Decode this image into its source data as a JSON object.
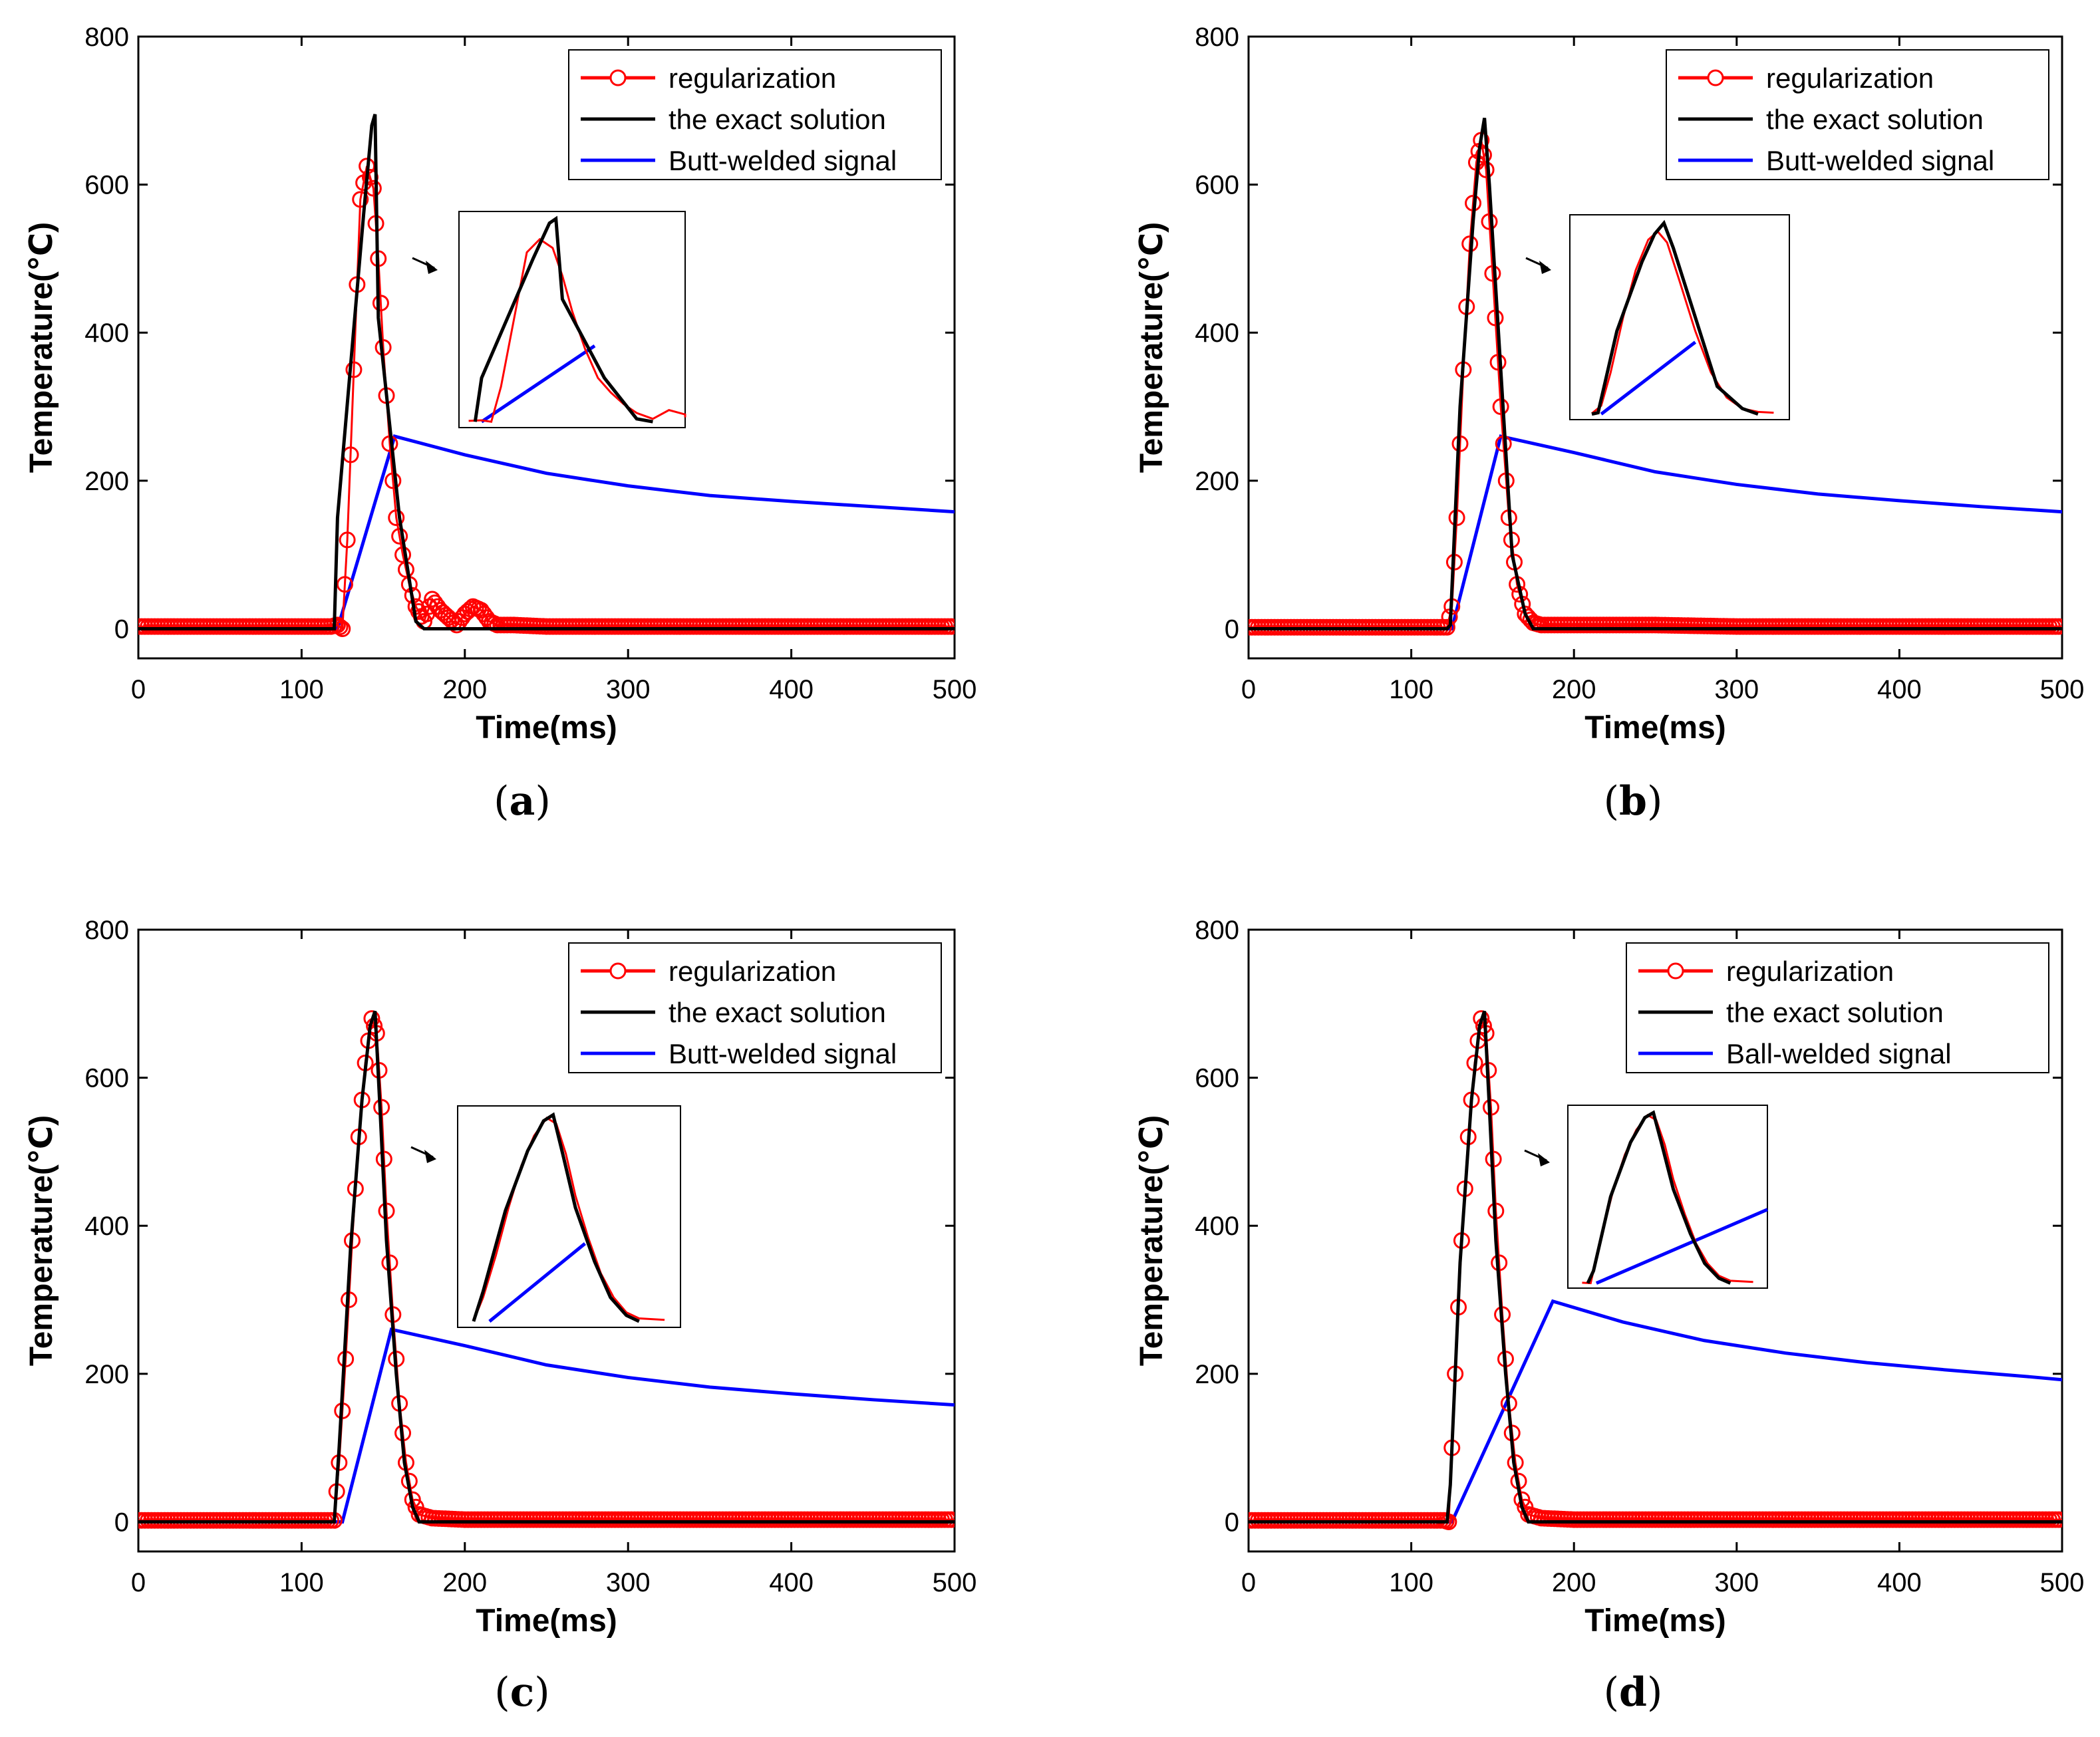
{
  "figure": {
    "captions": [
      "(a)",
      "(b)",
      "(c)",
      "(d)"
    ],
    "caption_letters": [
      "a",
      "b",
      "c",
      "d"
    ]
  },
  "colors": {
    "regularization": "#ff0000",
    "exact": "#000000",
    "signal": "#0000ff",
    "axis": "#000000",
    "background": "#ffffff"
  },
  "chart_data": [
    {
      "panel": "a",
      "type": "line",
      "xlabel": "Time(ms)",
      "ylabel": "Temperature(℃)",
      "xlim": [
        0,
        500
      ],
      "ylim": [
        -40,
        800
      ],
      "xticks": [
        0,
        100,
        200,
        300,
        400,
        500
      ],
      "yticks": [
        0,
        200,
        400,
        600,
        800
      ],
      "legend": [
        "regularization",
        "the exact solution",
        "Butt-welded signal"
      ],
      "legend_position": "top-right",
      "series": [
        {
          "name": "the exact solution",
          "x": [
            0,
            120,
            122,
            138,
            143,
            145,
            147,
            160,
            170,
            175,
            200,
            300,
            400,
            500
          ],
          "y": [
            0,
            0,
            150,
            560,
            680,
            695,
            420,
            150,
            10,
            0,
            0,
            0,
            0,
            0
          ]
        },
        {
          "name": "regularization",
          "x": [
            0,
            118,
            122,
            125,
            128,
            132,
            136,
            140,
            144,
            147,
            150,
            154,
            158,
            162,
            166,
            170,
            175,
            180,
            185,
            190,
            195,
            200,
            205,
            210,
            215,
            220,
            230,
            250,
            300,
            350,
            400,
            450,
            500
          ],
          "y": [
            3,
            3,
            5,
            0,
            120,
            350,
            580,
            625,
            595,
            500,
            380,
            250,
            150,
            100,
            60,
            30,
            10,
            40,
            25,
            15,
            5,
            20,
            30,
            25,
            10,
            5,
            5,
            3,
            3,
            3,
            3,
            3,
            3
          ]
        },
        {
          "name": "Butt-welded signal",
          "x": [
            0,
            122,
            157,
            200,
            250,
            300,
            350,
            400,
            450,
            500
          ],
          "y": [
            0,
            0,
            260,
            235,
            210,
            193,
            180,
            172,
            165,
            158
          ]
        }
      ],
      "annotation": "zoomed inset of pulse region"
    },
    {
      "panel": "b",
      "type": "line",
      "xlabel": "Time(ms)",
      "ylabel": "Temperature(℃)",
      "xlim": [
        0,
        500
      ],
      "ylim": [
        -40,
        800
      ],
      "xticks": [
        0,
        100,
        200,
        300,
        400,
        500
      ],
      "yticks": [
        0,
        200,
        400,
        600,
        800
      ],
      "legend": [
        "regularization",
        "the exact solution",
        "Butt-welded signal"
      ],
      "legend_position": "top-right",
      "series": [
        {
          "name": "the exact solution",
          "x": [
            0,
            122,
            124,
            130,
            138,
            142,
            145,
            148,
            155,
            162,
            170,
            175,
            200,
            300,
            400,
            500
          ],
          "y": [
            0,
            0,
            5,
            300,
            550,
            650,
            690,
            600,
            350,
            100,
            20,
            0,
            0,
            0,
            0,
            0
          ]
        },
        {
          "name": "regularization",
          "x": [
            0,
            122,
            125,
            128,
            132,
            136,
            140,
            143,
            146,
            150,
            155,
            160,
            165,
            170,
            175,
            180,
            200,
            250,
            300,
            350,
            400,
            450,
            500
          ],
          "y": [
            2,
            2,
            30,
            150,
            350,
            520,
            630,
            660,
            620,
            480,
            300,
            150,
            60,
            20,
            8,
            5,
            5,
            5,
            3,
            3,
            3,
            3,
            3
          ]
        },
        {
          "name": "Butt-welded signal",
          "x": [
            0,
            125,
            155,
            200,
            250,
            300,
            350,
            400,
            450,
            500
          ],
          "y": [
            0,
            0,
            260,
            238,
            212,
            195,
            182,
            173,
            165,
            158
          ]
        }
      ],
      "annotation": "zoomed inset of pulse region"
    },
    {
      "panel": "c",
      "type": "line",
      "xlabel": "Time(ms)",
      "ylabel": "Temperature(℃)",
      "xlim": [
        0,
        500
      ],
      "ylim": [
        -40,
        800
      ],
      "xticks": [
        0,
        100,
        200,
        300,
        400,
        500
      ],
      "yticks": [
        0,
        200,
        400,
        600,
        800
      ],
      "legend": [
        "regularization",
        "the exact solution",
        "Butt-welded signal"
      ],
      "legend_position": "top-right",
      "series": [
        {
          "name": "the exact solution",
          "x": [
            0,
            120,
            123,
            130,
            137,
            142,
            145,
            148,
            152,
            158,
            163,
            168,
            172,
            200,
            300,
            400,
            500
          ],
          "y": [
            0,
            0,
            100,
            370,
            570,
            670,
            690,
            560,
            380,
            200,
            80,
            20,
            0,
            0,
            0,
            0,
            0
          ]
        },
        {
          "name": "regularization",
          "x": [
            0,
            120,
            123,
            127,
            131,
            135,
            139,
            143,
            146,
            149,
            152,
            156,
            160,
            164,
            168,
            172,
            180,
            200,
            250,
            300,
            350,
            400,
            450,
            500
          ],
          "y": [
            2,
            2,
            80,
            220,
            380,
            520,
            620,
            680,
            660,
            560,
            420,
            280,
            160,
            80,
            30,
            10,
            5,
            3,
            3,
            3,
            3,
            3,
            3,
            3
          ]
        },
        {
          "name": "Butt-welded signal",
          "x": [
            0,
            125,
            155,
            200,
            250,
            300,
            350,
            400,
            450,
            500
          ],
          "y": [
            0,
            0,
            260,
            238,
            212,
            195,
            182,
            173,
            165,
            158
          ]
        }
      ],
      "annotation": "zoomed inset of pulse region"
    },
    {
      "panel": "d",
      "type": "line",
      "xlabel": "Time(ms)",
      "ylabel": "Temperature(℃)",
      "xlim": [
        0,
        500
      ],
      "ylim": [
        -40,
        800
      ],
      "xticks": [
        0,
        100,
        200,
        300,
        400,
        500
      ],
      "yticks": [
        0,
        200,
        400,
        600,
        800
      ],
      "legend": [
        "regularization",
        "the exact solution",
        "Ball-welded signal"
      ],
      "legend_position": "top-right",
      "series": [
        {
          "name": "the exact solution",
          "x": [
            0,
            122,
            124,
            130,
            137,
            142,
            145,
            148,
            152,
            158,
            163,
            168,
            172,
            200,
            300,
            400,
            500
          ],
          "y": [
            0,
            0,
            50,
            350,
            570,
            670,
            690,
            560,
            380,
            200,
            80,
            20,
            0,
            0,
            0,
            0,
            0
          ]
        },
        {
          "name": "regularization",
          "x": [
            0,
            120,
            123,
            127,
            131,
            135,
            139,
            143,
            146,
            149,
            152,
            156,
            160,
            164,
            168,
            172,
            180,
            200,
            250,
            300,
            350,
            400,
            450,
            500
          ],
          "y": [
            2,
            2,
            0,
            200,
            380,
            520,
            620,
            680,
            660,
            560,
            420,
            280,
            160,
            80,
            30,
            10,
            5,
            3,
            3,
            3,
            3,
            3,
            3,
            3
          ]
        },
        {
          "name": "Ball-welded signal",
          "x": [
            0,
            125,
            187,
            230,
            280,
            330,
            380,
            430,
            480,
            500
          ],
          "y": [
            0,
            0,
            298,
            270,
            245,
            228,
            215,
            205,
            196,
            192
          ]
        }
      ],
      "annotation": "zoomed inset of pulse region"
    }
  ]
}
